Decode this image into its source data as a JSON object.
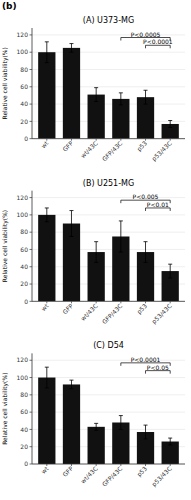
{
  "title": "(b)",
  "chart_data": [
    {
      "type": "bar",
      "title": "(A) U373-MG",
      "ylabel": "Relative cell viability(%)",
      "categories": [
        "wt",
        "GFP",
        "wt/43C",
        "GFP/43C",
        "p53",
        "p53/43C"
      ],
      "values": [
        100,
        105,
        51,
        46,
        48,
        17
      ],
      "errors": [
        12,
        5,
        8,
        7,
        8,
        4
      ],
      "color": "#111111",
      "ylim": [
        0,
        128
      ],
      "yticks": [
        0,
        20,
        40,
        60,
        80,
        100,
        120
      ],
      "annotations": [
        {
          "text": "P<0.0005",
          "from": "GFP/43C",
          "to": "p53/43C",
          "y": 117
        },
        {
          "text": "P<0.0001",
          "from": "p53",
          "to": "p53/43C",
          "y": 108
        }
      ]
    },
    {
      "type": "bar",
      "title": "(B) U251-MG",
      "ylabel": "Relative cell viability(%)",
      "categories": [
        "wt",
        "GFP",
        "wt/43C",
        "GFP/43C",
        "p53",
        "p53/43C"
      ],
      "values": [
        100,
        90,
        57,
        75,
        57,
        35
      ],
      "errors": [
        8,
        15,
        12,
        18,
        12,
        8
      ],
      "color": "#111111",
      "ylim": [
        0,
        128
      ],
      "yticks": [
        0,
        20,
        40,
        60,
        80,
        100,
        120
      ],
      "annotations": [
        {
          "text": "P<0.005",
          "from": "GFP/43C",
          "to": "p53/43C",
          "y": 117
        },
        {
          "text": "P<0.01",
          "from": "p53",
          "to": "p53/43C",
          "y": 108
        }
      ]
    },
    {
      "type": "bar",
      "title": "(C) D54",
      "ylabel": "Relative cell viability(%)",
      "categories": [
        "wt",
        "GFP",
        "wt/43C",
        "GFP/43C",
        "p53",
        "p53/43C"
      ],
      "values": [
        100,
        92,
        43,
        48,
        37,
        26
      ],
      "errors": [
        12,
        5,
        4,
        8,
        8,
        4
      ],
      "color": "#111111",
      "ylim": [
        0,
        128
      ],
      "yticks": [
        0,
        20,
        40,
        60,
        80,
        100,
        120
      ],
      "annotations": [
        {
          "text": "P<0.0001",
          "from": "GFP/43C",
          "to": "p53/43C",
          "y": 117
        },
        {
          "text": "P<0.05",
          "from": "p53",
          "to": "p53/43C",
          "y": 108
        }
      ]
    }
  ]
}
